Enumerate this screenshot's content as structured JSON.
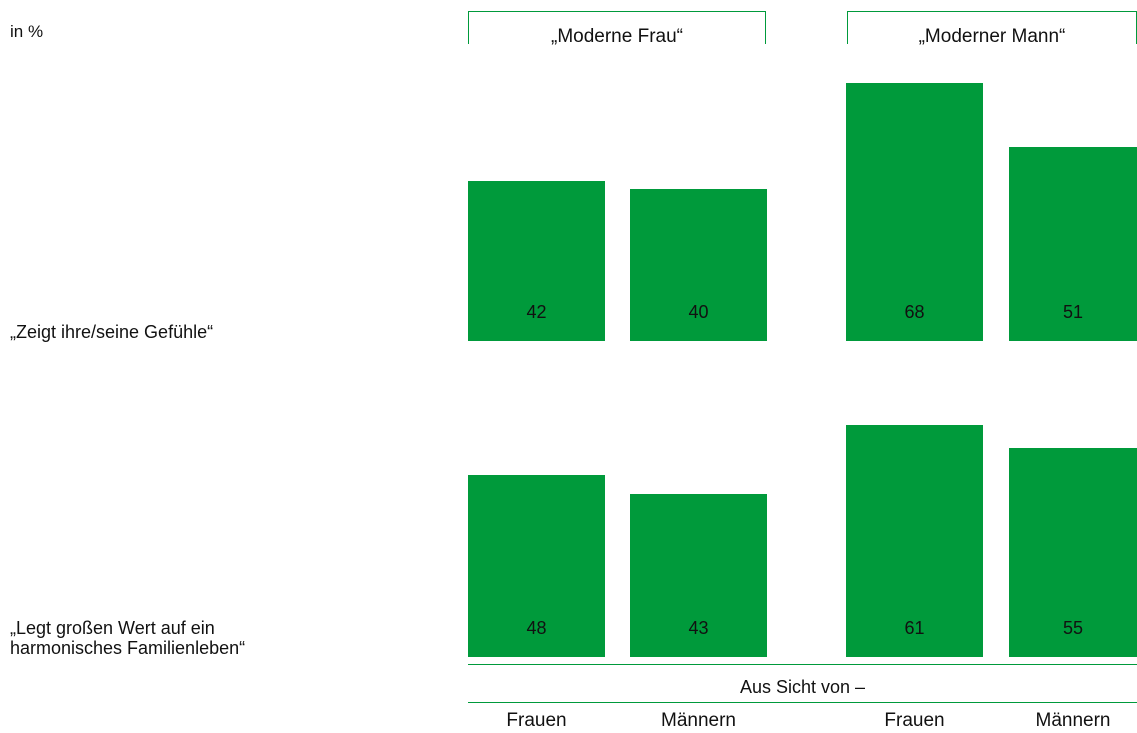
{
  "unit_label": "in %",
  "chart_data": {
    "type": "bar",
    "groups": [
      "„Moderne Frau“",
      "„Moderner Mann“"
    ],
    "categories": [
      "Frauen",
      "Männern",
      "Frauen",
      "Männern"
    ],
    "axis_caption": "Aus Sicht von –",
    "rows": [
      {
        "label": "„Zeigt ihre/seine Gefühle“",
        "values": [
          42,
          40,
          68,
          51
        ]
      },
      {
        "label": "„Legt großen Wert auf ein harmonisches Familienleben“",
        "values": [
          48,
          43,
          61,
          55
        ]
      }
    ],
    "colors": {
      "bar": "#009a3b"
    }
  }
}
